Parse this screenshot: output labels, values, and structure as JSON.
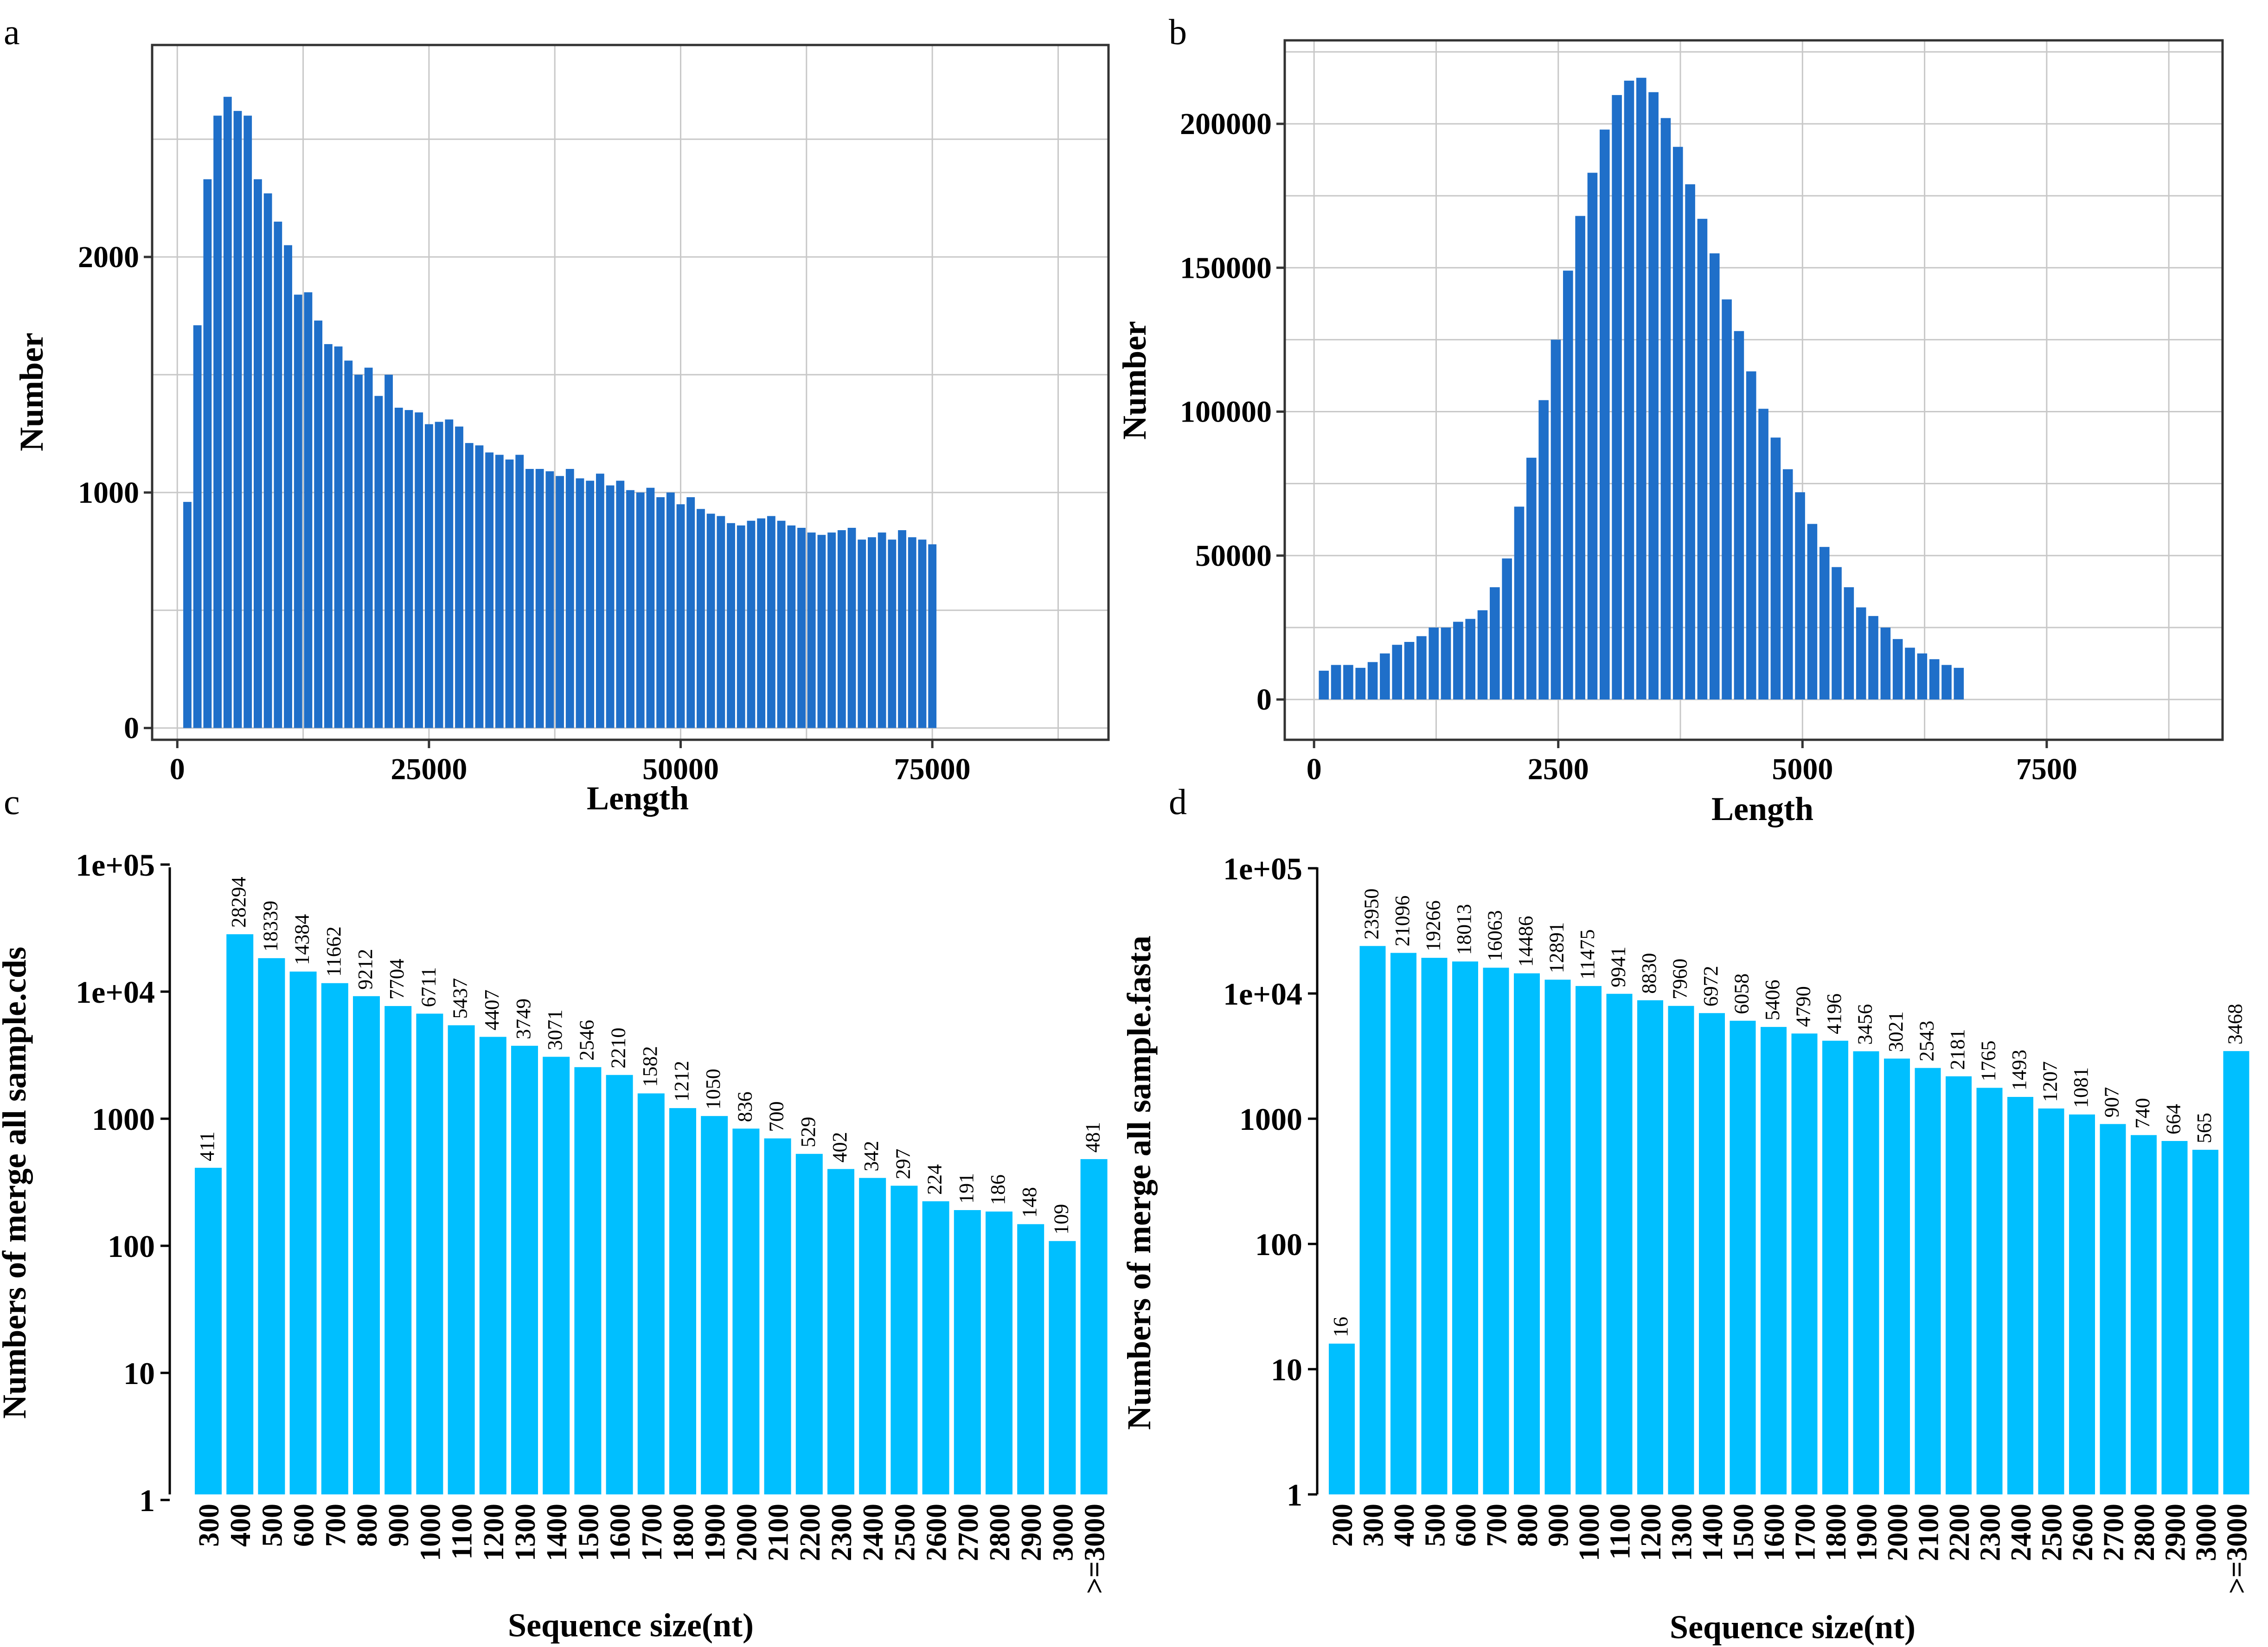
{
  "chart_data": [
    {
      "panel": "a",
      "type": "bar",
      "xlabel": "Length",
      "ylabel": "Number",
      "xlim": [
        -2500,
        92500
      ],
      "ylim": [
        -50,
        2900
      ],
      "xticks": [
        "0",
        "25000",
        "50000",
        "75000"
      ],
      "xtick_values": [
        0,
        25000,
        50000,
        75000
      ],
      "yticks": [
        "0",
        "1000",
        "2000"
      ],
      "ytick_values": [
        0,
        1000,
        2000
      ],
      "bin_start": 1000,
      "bin_width": 1000,
      "values": [
        960,
        1710,
        2330,
        2600,
        2680,
        2620,
        2600,
        2330,
        2270,
        2150,
        2050,
        1840,
        1850,
        1730,
        1630,
        1620,
        1560,
        1500,
        1530,
        1410,
        1500,
        1360,
        1350,
        1340,
        1290,
        1300,
        1310,
        1280,
        1210,
        1200,
        1170,
        1160,
        1140,
        1160,
        1100,
        1100,
        1090,
        1070,
        1100,
        1060,
        1050,
        1080,
        1030,
        1050,
        1010,
        1000,
        1020,
        980,
        1000,
        950,
        980,
        930,
        910,
        900,
        870,
        860,
        880,
        890,
        900,
        880,
        860,
        850,
        830,
        820,
        830,
        840,
        850,
        800,
        810,
        830,
        800,
        840,
        810,
        800,
        780
      ],
      "color": "#1f6fc9"
    },
    {
      "panel": "b",
      "type": "bar",
      "xlabel": "Length",
      "ylabel": "Number",
      "xlim": [
        -300,
        9300
      ],
      "ylim": [
        -14000,
        229000
      ],
      "xticks": [
        "0",
        "2500",
        "5000",
        "7500"
      ],
      "xtick_values": [
        0,
        2500,
        5000,
        7500
      ],
      "yticks": [
        "0",
        "50000",
        "100000",
        "150000",
        "200000"
      ],
      "ytick_values": [
        0,
        50000,
        100000,
        150000,
        200000
      ],
      "bin_start": 100,
      "bin_width": 125,
      "values": [
        10000,
        12000,
        12000,
        11000,
        13000,
        16000,
        19000,
        20000,
        22000,
        25000,
        25000,
        27000,
        28000,
        31000,
        39000,
        49000,
        67000,
        84000,
        104000,
        125000,
        149000,
        168000,
        183000,
        198000,
        210000,
        215000,
        216000,
        211000,
        202000,
        192000,
        179000,
        167000,
        155000,
        139000,
        128000,
        114000,
        101000,
        91000,
        80000,
        72000,
        61000,
        53000,
        46000,
        39000,
        32000,
        29000,
        25000,
        21000,
        18000,
        16000,
        14000,
        12000,
        11000
      ],
      "color": "#1f6fc9"
    },
    {
      "panel": "c",
      "type": "bar",
      "scale": "log",
      "xlabel": "Sequence size(nt)",
      "ylabel": "Numbers of merge all sample.cds",
      "yticks": [
        "1",
        "10",
        "100",
        "1000",
        "1e+04",
        "1e+05"
      ],
      "categories": [
        "300",
        "400",
        "500",
        "600",
        "700",
        "800",
        "900",
        "1000",
        "1100",
        "1200",
        "1300",
        "1400",
        "1500",
        "1600",
        "1700",
        "1800",
        "1900",
        "2000",
        "2100",
        "2200",
        "2300",
        "2400",
        "2500",
        "2600",
        "2700",
        "2800",
        "2900",
        "3000",
        ">=3000"
      ],
      "values": [
        411,
        28294,
        18339,
        14384,
        11662,
        9212,
        7704,
        6711,
        5437,
        4407,
        3749,
        3071,
        2546,
        2210,
        1582,
        1212,
        1050,
        836,
        700,
        529,
        402,
        342,
        297,
        224,
        191,
        186,
        148,
        109,
        481
      ],
      "color": "#00bfff"
    },
    {
      "panel": "d",
      "type": "bar",
      "scale": "log",
      "xlabel": "Sequence size(nt)",
      "ylabel": "Numbers of merge all sample.fasta",
      "yticks": [
        "1",
        "10",
        "100",
        "1000",
        "1e+04",
        "1e+05"
      ],
      "categories": [
        "200",
        "300",
        "400",
        "500",
        "600",
        "700",
        "800",
        "900",
        "1000",
        "1100",
        "1200",
        "1300",
        "1400",
        "1500",
        "1600",
        "1700",
        "1800",
        "1900",
        "2000",
        "2100",
        "2200",
        "2300",
        "2400",
        "2500",
        "2600",
        "2700",
        "2800",
        "2900",
        "3000",
        ">=3000"
      ],
      "values": [
        16,
        23950,
        21096,
        19266,
        18013,
        16063,
        14486,
        12891,
        11475,
        9941,
        8830,
        7960,
        6972,
        6058,
        5406,
        4790,
        4196,
        3456,
        3021,
        2543,
        2181,
        1765,
        1493,
        1207,
        1081,
        907,
        740,
        664,
        565,
        3468
      ],
      "color": "#00bfff"
    }
  ]
}
